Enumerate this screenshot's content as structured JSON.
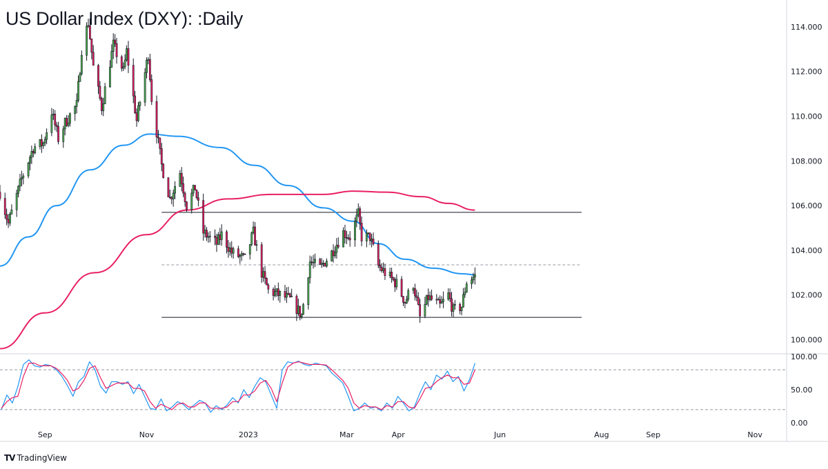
{
  "header": {
    "title": "US Dollar Index (DXY): :Daily"
  },
  "footer": {
    "logo_glyph": "TV",
    "brand_label": "TradingView"
  },
  "chart_data": [
    {
      "type": "candlestick",
      "title": "US Dollar Index (DXY): :Daily",
      "ylim": [
        99.4,
        115.2
      ],
      "y_ticks": [
        "114.000",
        "112.000",
        "110.000",
        "108.000",
        "106.000",
        "104.000",
        "102.000",
        "100.000"
      ],
      "y_tick_values": [
        114,
        112,
        110,
        108,
        106,
        104,
        102,
        100
      ],
      "x_ticks": [
        "Sep",
        "Nov",
        "2023",
        "Mar",
        "Apr",
        "Jun",
        "Aug",
        "Sep",
        "Nov"
      ],
      "x_tick_dates": [
        "2022-09-01",
        "2022-11-01",
        "2023-01-01",
        "2023-03-01",
        "2023-04-01",
        "2023-06-01",
        "2023-08-01",
        "2023-09-01",
        "2023-11-01"
      ],
      "x_range": [
        "2022-08-05",
        "2023-11-20"
      ],
      "last_bar_date": "2023-05-17",
      "close_anchors": [
        {
          "date": "2022-08-05",
          "close": 106.6
        },
        {
          "date": "2022-08-10",
          "close": 105.2
        },
        {
          "date": "2022-08-18",
          "close": 107.2
        },
        {
          "date": "2022-08-25",
          "close": 108.6
        },
        {
          "date": "2022-08-31",
          "close": 108.8
        },
        {
          "date": "2022-09-05",
          "close": 110.2
        },
        {
          "date": "2022-09-09",
          "close": 109.0
        },
        {
          "date": "2022-09-13",
          "close": 109.7
        },
        {
          "date": "2022-09-20",
          "close": 110.5
        },
        {
          "date": "2022-09-23",
          "close": 113.0
        },
        {
          "date": "2022-09-27",
          "close": 114.2
        },
        {
          "date": "2022-09-30",
          "close": 112.2
        },
        {
          "date": "2022-10-05",
          "close": 110.4
        },
        {
          "date": "2022-10-12",
          "close": 113.2
        },
        {
          "date": "2022-10-18",
          "close": 112.0
        },
        {
          "date": "2022-10-20",
          "close": 112.9
        },
        {
          "date": "2022-10-26",
          "close": 109.8
        },
        {
          "date": "2022-11-02",
          "close": 112.8
        },
        {
          "date": "2022-11-04",
          "close": 110.8
        },
        {
          "date": "2022-11-10",
          "close": 107.8
        },
        {
          "date": "2022-11-15",
          "close": 106.3
        },
        {
          "date": "2022-11-21",
          "close": 107.5
        },
        {
          "date": "2022-11-25",
          "close": 106.0
        },
        {
          "date": "2022-11-30",
          "close": 106.8
        },
        {
          "date": "2022-12-05",
          "close": 104.8
        },
        {
          "date": "2022-12-13",
          "close": 104.3
        },
        {
          "date": "2022-12-16",
          "close": 104.7
        },
        {
          "date": "2022-12-22",
          "close": 103.9
        },
        {
          "date": "2022-12-30",
          "close": 103.6
        },
        {
          "date": "2023-01-04",
          "close": 104.8
        },
        {
          "date": "2023-01-09",
          "close": 103.0
        },
        {
          "date": "2023-01-13",
          "close": 102.2
        },
        {
          "date": "2023-01-20",
          "close": 102.0
        },
        {
          "date": "2023-01-26",
          "close": 101.8
        },
        {
          "date": "2023-02-02",
          "close": 101.1
        },
        {
          "date": "2023-02-07",
          "close": 103.5
        },
        {
          "date": "2023-02-13",
          "close": 103.2
        },
        {
          "date": "2023-02-20",
          "close": 103.9
        },
        {
          "date": "2023-02-27",
          "close": 104.8
        },
        {
          "date": "2023-03-03",
          "close": 104.6
        },
        {
          "date": "2023-03-08",
          "close": 105.6
        },
        {
          "date": "2023-03-10",
          "close": 104.6
        },
        {
          "date": "2023-03-15",
          "close": 104.6
        },
        {
          "date": "2023-03-20",
          "close": 103.3
        },
        {
          "date": "2023-03-24",
          "close": 103.0
        },
        {
          "date": "2023-03-31",
          "close": 102.5
        },
        {
          "date": "2023-04-05",
          "close": 101.7
        },
        {
          "date": "2023-04-10",
          "close": 102.5
        },
        {
          "date": "2023-04-14",
          "close": 101.0
        },
        {
          "date": "2023-04-19",
          "close": 101.9
        },
        {
          "date": "2023-04-26",
          "close": 101.5
        },
        {
          "date": "2023-05-01",
          "close": 102.0
        },
        {
          "date": "2023-05-04",
          "close": 101.3
        },
        {
          "date": "2023-05-09",
          "close": 101.5
        },
        {
          "date": "2023-05-12",
          "close": 102.6
        },
        {
          "date": "2023-05-17",
          "close": 102.85
        }
      ],
      "series": [
        {
          "name": "",
          "kind": "sma",
          "color": "#2196f3",
          "points": [
            {
              "date": "2022-08-05",
              "value": 103.3
            },
            {
              "date": "2022-08-22",
              "value": 104.6
            },
            {
              "date": "2022-09-08",
              "value": 106.0
            },
            {
              "date": "2022-09-28",
              "value": 107.6
            },
            {
              "date": "2022-10-18",
              "value": 108.7
            },
            {
              "date": "2022-11-03",
              "value": 109.2
            },
            {
              "date": "2022-11-20",
              "value": 109.1
            },
            {
              "date": "2022-12-15",
              "value": 108.6
            },
            {
              "date": "2023-01-05",
              "value": 107.8
            },
            {
              "date": "2023-01-25",
              "value": 106.9
            },
            {
              "date": "2023-02-15",
              "value": 105.9
            },
            {
              "date": "2023-03-05",
              "value": 105.3
            },
            {
              "date": "2023-03-20",
              "value": 104.3
            },
            {
              "date": "2023-04-05",
              "value": 103.6
            },
            {
              "date": "2023-04-22",
              "value": 103.2
            },
            {
              "date": "2023-05-10",
              "value": 102.95
            },
            {
              "date": "2023-05-17",
              "value": 102.9
            }
          ]
        },
        {
          "name": "",
          "kind": "sma",
          "color": "#e91e63",
          "points": [
            {
              "date": "2022-08-05",
              "value": 99.6
            },
            {
              "date": "2022-09-01",
              "value": 101.2
            },
            {
              "date": "2022-10-01",
              "value": 103.0
            },
            {
              "date": "2022-11-01",
              "value": 104.7
            },
            {
              "date": "2022-11-25",
              "value": 105.8
            },
            {
              "date": "2022-12-20",
              "value": 106.3
            },
            {
              "date": "2023-01-15",
              "value": 106.5
            },
            {
              "date": "2023-02-15",
              "value": 106.5
            },
            {
              "date": "2023-03-05",
              "value": 106.65
            },
            {
              "date": "2023-03-25",
              "value": 106.6
            },
            {
              "date": "2023-04-15",
              "value": 106.4
            },
            {
              "date": "2023-05-01",
              "value": 106.1
            },
            {
              "date": "2023-05-17",
              "value": 105.8
            }
          ]
        }
      ],
      "levels": [
        {
          "value": 105.7,
          "style": "solid",
          "color": "#131722",
          "from": "2022-11-10",
          "to": "2023-07-20"
        },
        {
          "value": 103.35,
          "style": "dashed",
          "color": "#9598a1",
          "from": "2022-11-10",
          "to": "2023-07-20"
        },
        {
          "value": 101.0,
          "style": "solid",
          "color": "#131722",
          "from": "2022-11-10",
          "to": "2023-07-20"
        }
      ],
      "colors": {
        "up": "#4caf50",
        "down": "#e91e63",
        "outline": "#131722"
      }
    },
    {
      "type": "line",
      "ylim": [
        -3,
        103
      ],
      "y_ticks": [
        "100.00",
        "50.00",
        "0.00"
      ],
      "y_tick_values": [
        100,
        50,
        0
      ],
      "levels": [
        {
          "value": 80,
          "style": "dashed"
        },
        {
          "value": 20,
          "style": "dashed"
        }
      ],
      "series": [
        {
          "name": "",
          "color": "#2196f3",
          "values": [
            20,
            42,
            30,
            55,
            88,
            95,
            86,
            84,
            88,
            86,
            80,
            70,
            56,
            40,
            62,
            70,
            92,
            80,
            55,
            45,
            62,
            62,
            58,
            62,
            44,
            58,
            40,
            22,
            20,
            36,
            18,
            24,
            32,
            28,
            20,
            27,
            34,
            30,
            16,
            26,
            20,
            27,
            38,
            30,
            50,
            38,
            55,
            68,
            62,
            42,
            22,
            80,
            92,
            90,
            93,
            88,
            86,
            90,
            88,
            86,
            75,
            68,
            60,
            40,
            18,
            22,
            30,
            22,
            24,
            18,
            30,
            22,
            40,
            30,
            18,
            24,
            45,
            62,
            50,
            72,
            66,
            78,
            62,
            70,
            48,
            65,
            90
          ]
        },
        {
          "name": "",
          "color": "#e91e63",
          "values": [
            22,
            32,
            38,
            40,
            70,
            90,
            90,
            86,
            86,
            86,
            82,
            74,
            64,
            48,
            52,
            64,
            82,
            86,
            68,
            52,
            56,
            60,
            60,
            60,
            52,
            52,
            48,
            32,
            22,
            28,
            24,
            20,
            28,
            30,
            24,
            24,
            30,
            30,
            22,
            22,
            22,
            24,
            32,
            32,
            42,
            42,
            48,
            60,
            64,
            52,
            32,
            60,
            84,
            90,
            92,
            90,
            88,
            88,
            88,
            87,
            80,
            72,
            64,
            52,
            30,
            22,
            26,
            24,
            24,
            20,
            26,
            24,
            32,
            32,
            24,
            22,
            36,
            52,
            54,
            62,
            68,
            72,
            68,
            68,
            58,
            60,
            80
          ]
        }
      ],
      "last_date": "2023-05-17"
    }
  ]
}
